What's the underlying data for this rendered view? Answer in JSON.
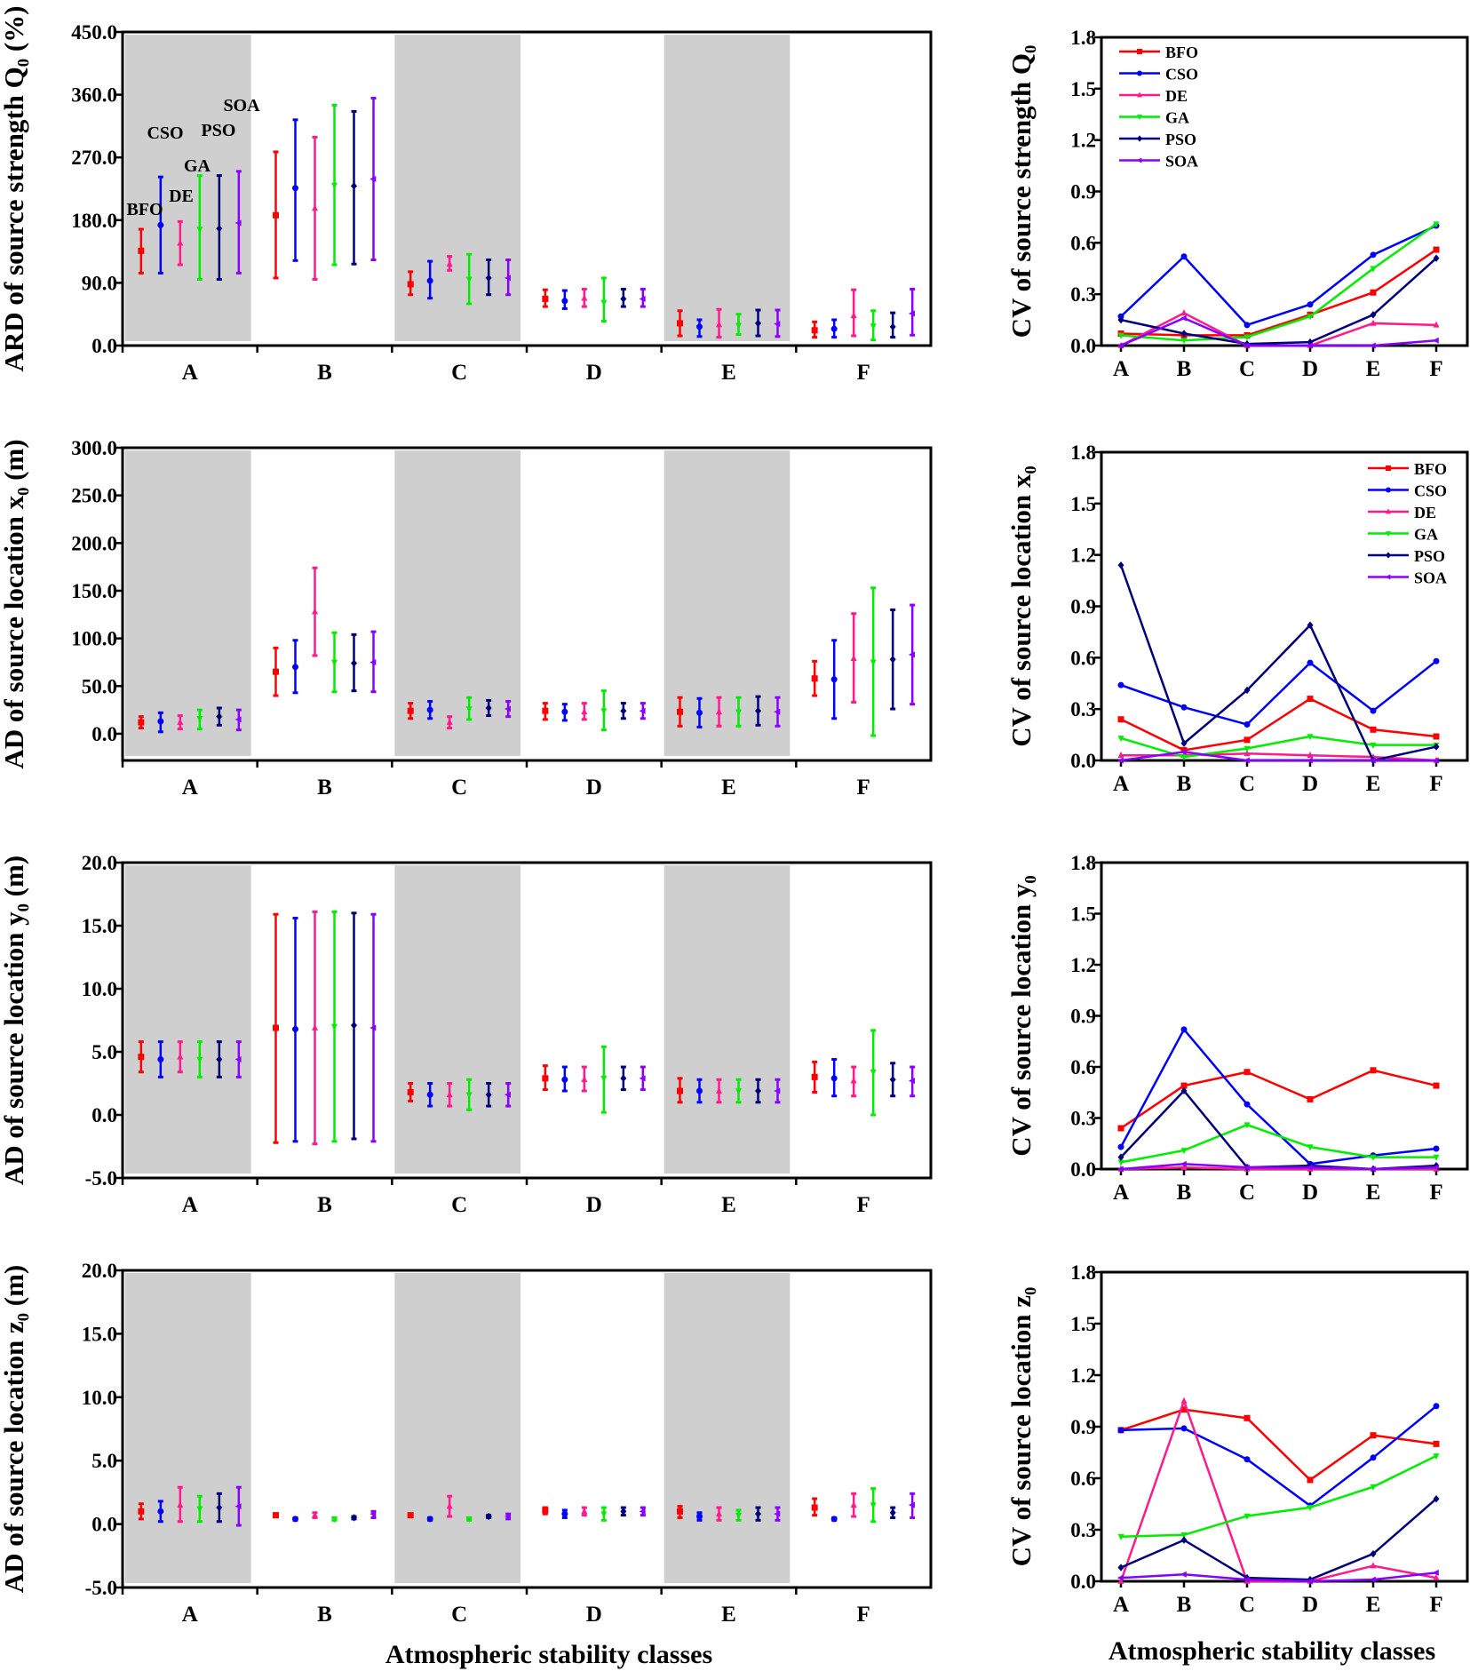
{
  "methods": [
    "BFO",
    "CSO",
    "DE",
    "GA",
    "PSO",
    "SOA"
  ],
  "colors": {
    "BFO": "#ff0000",
    "CSO": "#0000ff",
    "DE": "#ff1a8c",
    "GA": "#00ee00",
    "PSO": "#00007f",
    "SOA": "#8a00ff"
  },
  "shade_color": "#d0cfd0",
  "x_axis_title_left": "Atmospheric stability classes",
  "x_axis_title_right": "Atmospheric stability classes",
  "chart_data": [
    {
      "type": "errorbar",
      "title": "",
      "ylabel": "ARD of source strength Q₀ (%)",
      "xlabel": "",
      "categories": [
        "A",
        "B",
        "C",
        "D",
        "E",
        "F"
      ],
      "shaded_categories": [
        "A",
        "C",
        "E"
      ],
      "ylim": [
        0,
        450
      ],
      "yticks": [
        "0.0",
        "90.0",
        "180.0",
        "270.0",
        "360.0",
        "450.0"
      ],
      "annotations": [
        "BFO",
        "CSO",
        "DE",
        "GA",
        "PSO",
        "SOA"
      ],
      "series": [
        {
          "name": "BFO",
          "mean": [
            136,
            187,
            88,
            67,
            32,
            22
          ],
          "low": [
            104,
            97,
            73,
            56,
            14,
            12
          ],
          "high": [
            167,
            278,
            106,
            80,
            50,
            34
          ]
        },
        {
          "name": "CSO",
          "mean": [
            173,
            226,
            93,
            64,
            27,
            24
          ],
          "low": [
            104,
            122,
            68,
            53,
            13,
            12
          ],
          "high": [
            242,
            324,
            121,
            79,
            37,
            37
          ]
        },
        {
          "name": "DE",
          "mean": [
            147,
            197,
            117,
            68,
            30,
            43
          ],
          "low": [
            116,
            95,
            108,
            56,
            12,
            14
          ],
          "high": [
            178,
            299,
            128,
            81,
            52,
            80
          ]
        },
        {
          "name": "GA",
          "mean": [
            167,
            230,
            95,
            62,
            29,
            28
          ],
          "low": [
            95,
            116,
            60,
            35,
            16,
            8
          ],
          "high": [
            244,
            345,
            131,
            97,
            45,
            50
          ]
        },
        {
          "name": "PSO",
          "mean": [
            168,
            229,
            97,
            67,
            32,
            27
          ],
          "low": [
            95,
            117,
            73,
            56,
            14,
            12
          ],
          "high": [
            244,
            336,
            123,
            81,
            51,
            47
          ]
        },
        {
          "name": "SOA",
          "mean": [
            176,
            239,
            97,
            67,
            31,
            46
          ],
          "low": [
            104,
            123,
            73,
            56,
            13,
            15
          ],
          "high": [
            250,
            355,
            123,
            81,
            51,
            81
          ]
        }
      ]
    },
    {
      "type": "line",
      "ylabel": "CV of source strength Q₀",
      "categories": [
        "A",
        "B",
        "C",
        "D",
        "E",
        "F"
      ],
      "ylim": [
        0,
        1.8
      ],
      "yticks": [
        "0.0",
        "0.3",
        "0.6",
        "0.9",
        "1.2",
        "1.5",
        "1.8"
      ],
      "legend": "top-left",
      "series": [
        {
          "name": "BFO",
          "values": [
            0.07,
            0.06,
            0.06,
            0.18,
            0.31,
            0.56
          ]
        },
        {
          "name": "CSO",
          "values": [
            0.17,
            0.52,
            0.12,
            0.24,
            0.53,
            0.7
          ]
        },
        {
          "name": "DE",
          "values": [
            0.0,
            0.19,
            0.0,
            0.0,
            0.13,
            0.12
          ]
        },
        {
          "name": "GA",
          "values": [
            0.06,
            0.03,
            0.05,
            0.17,
            0.45,
            0.71
          ]
        },
        {
          "name": "PSO",
          "values": [
            0.15,
            0.07,
            0.01,
            0.02,
            0.18,
            0.51
          ]
        },
        {
          "name": "SOA",
          "values": [
            0.0,
            0.16,
            0.0,
            0.0,
            0.0,
            0.03
          ]
        }
      ]
    },
    {
      "type": "errorbar",
      "ylabel": "AD of source location x₀ (m)",
      "categories": [
        "A",
        "B",
        "C",
        "D",
        "E",
        "F"
      ],
      "shaded_categories": [
        "A",
        "C",
        "E"
      ],
      "ylim": [
        -28,
        300
      ],
      "yticks": [
        "0.0",
        "50.0",
        "100.0",
        "150.0",
        "200.0",
        "250.0",
        "300.0"
      ],
      "series": [
        {
          "name": "BFO",
          "mean": [
            12,
            65,
            24,
            24,
            23,
            58
          ],
          "low": [
            6,
            40,
            16,
            15,
            8,
            40
          ],
          "high": [
            18,
            90,
            32,
            32,
            38,
            76
          ]
        },
        {
          "name": "CSO",
          "mean": [
            13,
            70,
            25,
            23,
            22,
            57
          ],
          "low": [
            2,
            43,
            16,
            14,
            7,
            16
          ],
          "high": [
            22,
            98,
            34,
            31,
            37,
            98
          ]
        },
        {
          "name": "DE",
          "mean": [
            12,
            128,
            12,
            23,
            23,
            79
          ],
          "low": [
            5,
            82,
            6,
            15,
            8,
            33
          ],
          "high": [
            19,
            174,
            18,
            32,
            38,
            126
          ]
        },
        {
          "name": "GA",
          "mean": [
            16,
            75,
            26,
            24,
            23,
            75
          ],
          "low": [
            5,
            44,
            15,
            4,
            8,
            -2
          ],
          "high": [
            25,
            106,
            38,
            45,
            38,
            153
          ]
        },
        {
          "name": "PSO",
          "mean": [
            18,
            74,
            27,
            24,
            24,
            78
          ],
          "low": [
            9,
            45,
            19,
            16,
            9,
            26
          ],
          "high": [
            27,
            104,
            35,
            32,
            39,
            130
          ]
        },
        {
          "name": "SOA",
          "mean": [
            15,
            75,
            26,
            24,
            23,
            83
          ],
          "low": [
            4,
            44,
            18,
            16,
            8,
            31
          ],
          "high": [
            25,
            107,
            34,
            32,
            38,
            135
          ]
        }
      ]
    },
    {
      "type": "line",
      "ylabel": "CV of source location x₀",
      "categories": [
        "A",
        "B",
        "C",
        "D",
        "E",
        "F"
      ],
      "ylim": [
        0,
        1.8
      ],
      "yticks": [
        "0.0",
        "0.3",
        "0.6",
        "0.9",
        "1.2",
        "1.5",
        "1.8"
      ],
      "legend": "top-right",
      "series": [
        {
          "name": "BFO",
          "values": [
            0.24,
            0.06,
            0.12,
            0.36,
            0.18,
            0.14
          ]
        },
        {
          "name": "CSO",
          "values": [
            0.44,
            0.31,
            0.21,
            0.57,
            0.29,
            0.58
          ]
        },
        {
          "name": "DE",
          "values": [
            0.03,
            0.03,
            0.04,
            0.03,
            0.02,
            0.0
          ]
        },
        {
          "name": "GA",
          "values": [
            0.13,
            0.02,
            0.07,
            0.14,
            0.09,
            0.09
          ]
        },
        {
          "name": "PSO",
          "values": [
            1.14,
            0.1,
            0.41,
            0.79,
            0.0,
            0.08
          ]
        },
        {
          "name": "SOA",
          "values": [
            0.0,
            0.05,
            0.0,
            0.0,
            0.0,
            0.0
          ]
        }
      ]
    },
    {
      "type": "errorbar",
      "ylabel": "AD of source location y₀ (m)",
      "categories": [
        "A",
        "B",
        "C",
        "D",
        "E",
        "F"
      ],
      "shaded_categories": [
        "A",
        "C",
        "E"
      ],
      "ylim": [
        -5,
        20
      ],
      "yticks": [
        "-5.0",
        "0.0",
        "5.0",
        "10.0",
        "15.0",
        "20.0"
      ],
      "series": [
        {
          "name": "BFO",
          "mean": [
            4.6,
            6.9,
            1.8,
            2.9,
            1.9,
            3.0
          ],
          "low": [
            3.4,
            -2.2,
            1.1,
            2.0,
            1.0,
            1.8
          ],
          "high": [
            5.8,
            15.9,
            2.5,
            3.9,
            2.9,
            4.2
          ]
        },
        {
          "name": "CSO",
          "mean": [
            4.4,
            6.8,
            1.6,
            2.8,
            1.9,
            2.9
          ],
          "low": [
            3.0,
            -2.1,
            0.7,
            1.9,
            1.0,
            1.5
          ],
          "high": [
            5.8,
            15.6,
            2.5,
            3.8,
            2.8,
            4.4
          ]
        },
        {
          "name": "DE",
          "mean": [
            4.6,
            6.9,
            1.6,
            2.8,
            1.9,
            2.7
          ],
          "low": [
            3.4,
            -2.3,
            0.7,
            1.9,
            1.0,
            1.5
          ],
          "high": [
            5.8,
            16.1,
            2.5,
            3.8,
            2.8,
            3.8
          ]
        },
        {
          "name": "GA",
          "mean": [
            4.4,
            7.0,
            1.6,
            2.9,
            1.9,
            3.4
          ],
          "low": [
            3.0,
            -2.1,
            0.4,
            0.2,
            1.0,
            0.0
          ],
          "high": [
            5.8,
            16.1,
            2.8,
            5.4,
            2.8,
            6.7
          ]
        },
        {
          "name": "PSO",
          "mean": [
            4.4,
            7.1,
            1.6,
            2.9,
            1.9,
            2.8
          ],
          "low": [
            3.0,
            -1.9,
            0.7,
            2.0,
            1.0,
            1.5
          ],
          "high": [
            5.8,
            16.0,
            2.5,
            3.8,
            2.8,
            4.1
          ]
        },
        {
          "name": "SOA",
          "mean": [
            4.4,
            6.9,
            1.6,
            2.9,
            1.9,
            2.7
          ],
          "low": [
            3.0,
            -2.1,
            0.7,
            2.0,
            1.0,
            1.5
          ],
          "high": [
            5.8,
            15.9,
            2.5,
            3.8,
            2.8,
            3.8
          ]
        }
      ]
    },
    {
      "type": "line",
      "ylabel": "CV of source location y₀",
      "categories": [
        "A",
        "B",
        "C",
        "D",
        "E",
        "F"
      ],
      "ylim": [
        0,
        1.8
      ],
      "yticks": [
        "0.0",
        "0.3",
        "0.6",
        "0.9",
        "1.2",
        "1.5",
        "1.8"
      ],
      "series": [
        {
          "name": "BFO",
          "values": [
            0.24,
            0.49,
            0.57,
            0.41,
            0.58,
            0.49
          ]
        },
        {
          "name": "CSO",
          "values": [
            0.13,
            0.82,
            0.38,
            0.03,
            0.08,
            0.12
          ]
        },
        {
          "name": "DE",
          "values": [
            0.0,
            0.01,
            0.0,
            0.0,
            0.0,
            0.0
          ]
        },
        {
          "name": "GA",
          "values": [
            0.04,
            0.11,
            0.26,
            0.13,
            0.07,
            0.07
          ]
        },
        {
          "name": "PSO",
          "values": [
            0.07,
            0.46,
            0.01,
            0.02,
            0.0,
            0.02
          ]
        },
        {
          "name": "SOA",
          "values": [
            0.0,
            0.03,
            0.01,
            0.01,
            0.0,
            0.01
          ]
        }
      ]
    },
    {
      "type": "errorbar",
      "ylabel": "AD of source location z₀ (m)",
      "categories": [
        "A",
        "B",
        "C",
        "D",
        "E",
        "F"
      ],
      "shaded_categories": [
        "A",
        "C",
        "E"
      ],
      "ylim": [
        -5,
        20
      ],
      "yticks": [
        "-5.0",
        "0.0",
        "5.0",
        "10.0",
        "15.0",
        "20.0"
      ],
      "series": [
        {
          "name": "BFO",
          "mean": [
            1.0,
            0.7,
            0.7,
            1.1,
            1.0,
            1.3
          ],
          "low": [
            0.4,
            0.6,
            0.6,
            0.8,
            0.5,
            0.7
          ],
          "high": [
            1.6,
            0.8,
            0.8,
            1.3,
            1.4,
            2.0
          ]
        },
        {
          "name": "CSO",
          "mean": [
            1.0,
            0.4,
            0.4,
            0.8,
            0.6,
            0.4
          ],
          "low": [
            0.2,
            0.3,
            0.3,
            0.5,
            0.3,
            0.3
          ],
          "high": [
            1.8,
            0.5,
            0.5,
            1.1,
            0.9,
            0.5
          ]
        },
        {
          "name": "DE",
          "mean": [
            1.5,
            0.7,
            1.4,
            1.0,
            0.8,
            1.5
          ],
          "low": [
            0.2,
            0.5,
            0.6,
            0.7,
            0.3,
            0.6
          ],
          "high": [
            2.9,
            0.9,
            2.2,
            1.3,
            1.3,
            2.4
          ]
        },
        {
          "name": "GA",
          "mean": [
            1.2,
            0.4,
            0.4,
            0.8,
            0.7,
            1.5
          ],
          "low": [
            0.2,
            0.3,
            0.3,
            0.3,
            0.3,
            0.2
          ],
          "high": [
            2.2,
            0.5,
            0.5,
            1.3,
            1.1,
            2.8
          ]
        },
        {
          "name": "PSO",
          "mean": [
            1.3,
            0.5,
            0.6,
            1.0,
            0.8,
            0.9
          ],
          "low": [
            0.2,
            0.4,
            0.5,
            0.7,
            0.3,
            0.5
          ],
          "high": [
            2.4,
            0.6,
            0.7,
            1.3,
            1.3,
            1.3
          ]
        },
        {
          "name": "SOA",
          "mean": [
            1.4,
            0.8,
            0.6,
            1.0,
            0.8,
            1.5
          ],
          "low": [
            -0.1,
            0.5,
            0.4,
            0.7,
            0.3,
            0.5
          ],
          "high": [
            2.9,
            1.0,
            0.8,
            1.3,
            1.3,
            2.4
          ]
        }
      ]
    },
    {
      "type": "line",
      "ylabel": "CV of source location z₀",
      "categories": [
        "A",
        "B",
        "C",
        "D",
        "E",
        "F"
      ],
      "ylim": [
        0,
        1.8
      ],
      "yticks": [
        "0.0",
        "0.3",
        "0.6",
        "0.9",
        "1.2",
        "1.5",
        "1.8"
      ],
      "series": [
        {
          "name": "BFO",
          "values": [
            0.88,
            1.0,
            0.95,
            0.59,
            0.85,
            0.8
          ]
        },
        {
          "name": "CSO",
          "values": [
            0.88,
            0.89,
            0.71,
            0.44,
            0.72,
            1.02
          ]
        },
        {
          "name": "DE",
          "values": [
            0.0,
            1.05,
            0.0,
            0.0,
            0.09,
            0.02
          ]
        },
        {
          "name": "GA",
          "values": [
            0.26,
            0.27,
            0.38,
            0.43,
            0.55,
            0.73
          ]
        },
        {
          "name": "PSO",
          "values": [
            0.08,
            0.24,
            0.02,
            0.01,
            0.16,
            0.48
          ]
        },
        {
          "name": "SOA",
          "values": [
            0.02,
            0.04,
            0.01,
            0.0,
            0.01,
            0.05
          ]
        }
      ]
    }
  ]
}
